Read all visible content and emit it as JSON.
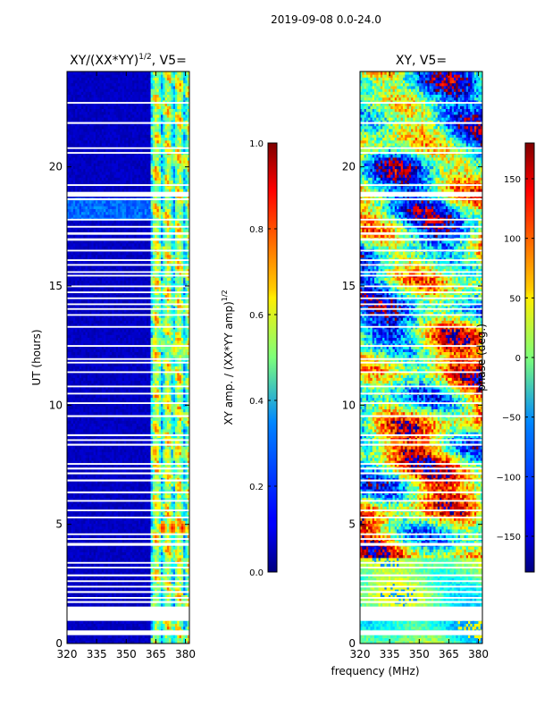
{
  "figure": {
    "suptitle": "2019-09-08 0.0-24.0",
    "common_xlabel": "frequency (MHz)"
  },
  "chart_data": [
    {
      "type": "heatmap",
      "title_main": "XY/(XX*YY)",
      "title_sup": "1/2",
      "title_tail": ", V5=",
      "ylabel": "UT (hours)",
      "xlim": [
        320,
        382
      ],
      "ylim": [
        0,
        24
      ],
      "xticks": [
        320,
        335,
        350,
        365,
        380
      ],
      "yticks": [
        0,
        5,
        10,
        15,
        20
      ],
      "colormap": "jet",
      "colorbar": {
        "label": "XY amp. / (XX*YY amp)",
        "label_sup": "1/2",
        "range": [
          0.0,
          1.0
        ],
        "ticks": [
          0.0,
          0.2,
          0.4,
          0.6,
          0.8,
          1.0
        ],
        "tick_labels": [
          "0.0",
          "0.2",
          "0.4",
          "0.6",
          "0.8",
          "1.0"
        ]
      },
      "active_band_mhz": [
        362,
        382
      ],
      "bright_spots": [
        {
          "freq": 364,
          "ut": 8.0,
          "value": 0.8
        },
        {
          "freq": 368,
          "ut": 4.8,
          "value": 0.9
        },
        {
          "freq": 373,
          "ut": 4.8,
          "value": 0.9
        },
        {
          "freq": 378,
          "ut": 4.8,
          "value": 0.9
        },
        {
          "freq": 370,
          "ut": 7.9,
          "value": 0.7
        },
        {
          "freq": 375,
          "ut": 7.9,
          "value": 0.7
        },
        {
          "freq": 380,
          "ut": 7.9,
          "value": 0.6
        },
        {
          "freq": 370,
          "ut": 10.0,
          "value": 0.7
        },
        {
          "freq": 368,
          "ut": 12.5,
          "value": 0.6
        },
        {
          "freq": 374,
          "ut": 12.3,
          "value": 0.7
        },
        {
          "freq": 379,
          "ut": 12.2,
          "value": 0.6
        },
        {
          "freq": 364,
          "ut": 12.6,
          "value": 0.7
        },
        {
          "freq": 374,
          "ut": 20.3,
          "value": 0.6
        },
        {
          "freq": 379,
          "ut": 20.2,
          "value": 0.7
        }
      ]
    },
    {
      "type": "heatmap",
      "title_main": "XY, V5=",
      "xlabel": "frequency (MHz)",
      "xlim": [
        320,
        382
      ],
      "ylim": [
        0,
        24
      ],
      "xticks": [
        320,
        335,
        350,
        365,
        380
      ],
      "yticks": [
        0,
        5,
        10,
        15,
        20
      ],
      "colormap": "jet",
      "colorbar": {
        "label": "phase (deg.)",
        "range": [
          -180,
          180
        ],
        "ticks": [
          -150,
          -100,
          -50,
          0,
          50,
          100,
          150
        ],
        "tick_labels": [
          "−150",
          "−100",
          "−50",
          "0",
          "50",
          "100",
          "150"
        ]
      }
    }
  ],
  "data_gaps_ut": [
    [
      0.35,
      0.55
    ],
    [
      0.95,
      1.55
    ],
    [
      1.7,
      1.78
    ],
    [
      1.88,
      1.95
    ],
    [
      2.12,
      2.2
    ],
    [
      2.35,
      2.42
    ],
    [
      2.58,
      2.65
    ],
    [
      2.82,
      2.9
    ],
    [
      3.15,
      3.22
    ],
    [
      3.35,
      3.42
    ],
    [
      4.1,
      4.22
    ],
    [
      4.35,
      4.42
    ],
    [
      4.55,
      4.62
    ],
    [
      5.25,
      5.32
    ],
    [
      5.55,
      5.62
    ],
    [
      5.95,
      6.02
    ],
    [
      6.3,
      6.38
    ],
    [
      6.8,
      6.88
    ],
    [
      7.1,
      7.18
    ],
    [
      7.3,
      7.38
    ],
    [
      7.5,
      7.57
    ],
    [
      8.3,
      8.38
    ],
    [
      8.5,
      8.57
    ],
    [
      8.7,
      8.78
    ],
    [
      9.5,
      9.58
    ],
    [
      10.05,
      10.12
    ],
    [
      10.45,
      10.52
    ],
    [
      10.75,
      10.82
    ],
    [
      11.35,
      11.42
    ],
    [
      11.75,
      11.82
    ],
    [
      11.9,
      11.97
    ],
    [
      12.45,
      12.52
    ],
    [
      13.25,
      13.32
    ],
    [
      13.75,
      13.82
    ],
    [
      14.0,
      14.07
    ],
    [
      14.2,
      14.27
    ],
    [
      14.45,
      14.52
    ],
    [
      14.7,
      14.77
    ],
    [
      14.95,
      15.02
    ],
    [
      15.4,
      15.47
    ],
    [
      15.55,
      15.62
    ],
    [
      15.85,
      15.92
    ],
    [
      16.05,
      16.12
    ],
    [
      16.45,
      16.52
    ],
    [
      16.9,
      17.0
    ],
    [
      17.15,
      17.25
    ],
    [
      17.45,
      17.52
    ],
    [
      17.75,
      17.82
    ],
    [
      18.6,
      18.68
    ],
    [
      18.75,
      18.95
    ],
    [
      19.2,
      19.27
    ],
    [
      20.55,
      20.62
    ],
    [
      20.75,
      20.82
    ],
    [
      21.8,
      21.88
    ],
    [
      22.65,
      22.72
    ]
  ]
}
